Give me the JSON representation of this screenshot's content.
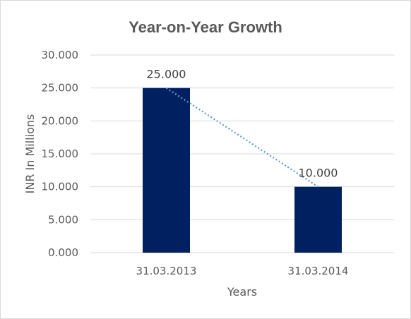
{
  "chart_data": {
    "type": "bar",
    "title": "Year-on-Year Growth",
    "xlabel": "Years",
    "ylabel": "INR In Millions",
    "categories": [
      "31.03.2013",
      "31.03.2014"
    ],
    "values": [
      25,
      10
    ],
    "value_labels": [
      "25.000",
      "10.000"
    ],
    "yticks": [
      0,
      5,
      10,
      15,
      20,
      25,
      30
    ],
    "ytick_labels": [
      "0.000",
      "5.000",
      "10.000",
      "15.000",
      "20.000",
      "25.000",
      "30.000"
    ],
    "ylim": [
      0,
      30
    ],
    "grid": true,
    "legend": "none",
    "trendline": "linear",
    "bar_color": "#002060",
    "trendline_color": "#5b9bd5",
    "grid_color": "#d9d9d9"
  }
}
